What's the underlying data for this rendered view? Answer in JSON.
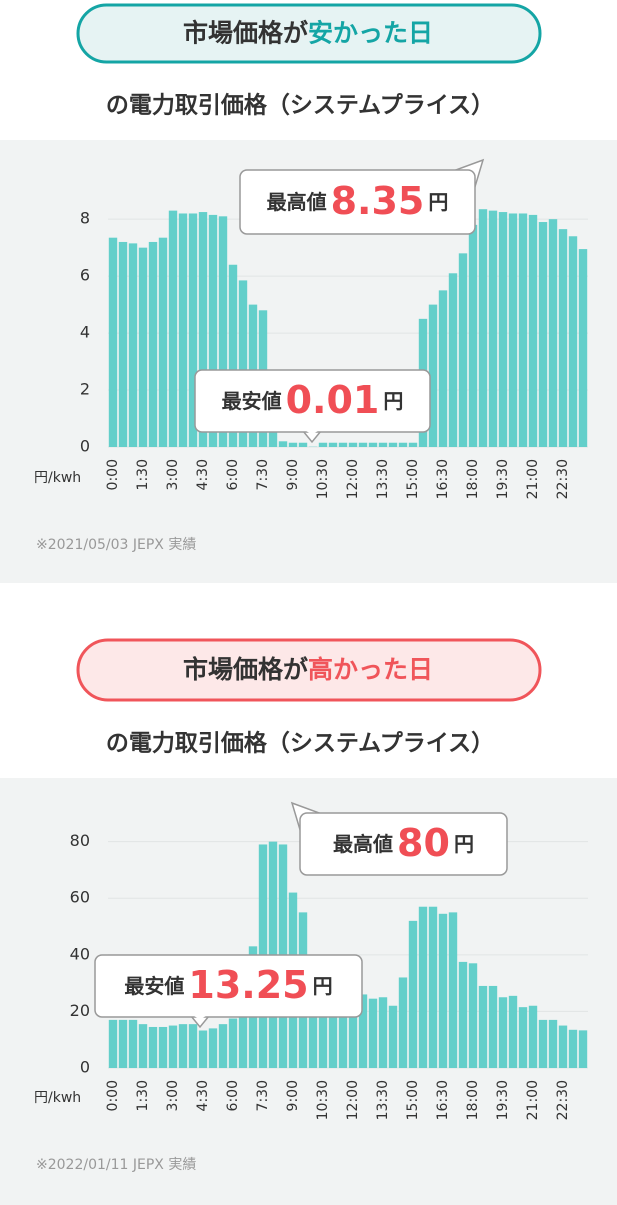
{
  "chart_data": [
    {
      "type": "bar",
      "title_prefix": "市場価格が",
      "title_highlight": "安かった日",
      "highlight_color": "#14a5a5",
      "subtitle": "の電力取引価格（システムプライス）",
      "y_label": "円/kwh",
      "source": "※2021/05/03 JEPX 実績",
      "categories": [
        "0:00",
        null,
        null,
        "1:30",
        null,
        null,
        "3:00",
        null,
        null,
        "4:30",
        null,
        null,
        "6:00",
        null,
        null,
        "7:30",
        null,
        null,
        "9:00",
        null,
        null,
        "10:30",
        null,
        null,
        "12:00",
        null,
        null,
        "13:30",
        null,
        null,
        "15:00",
        null,
        null,
        "16:30",
        null,
        null,
        "18:00",
        null,
        null,
        "19:30",
        null,
        null,
        "21:00",
        null,
        null,
        "22:30",
        null,
        null
      ],
      "values": [
        7.35,
        7.2,
        7.15,
        7.0,
        7.2,
        7.35,
        8.3,
        8.2,
        8.2,
        8.25,
        8.15,
        8.1,
        6.4,
        5.85,
        5.0,
        4.8,
        1.5,
        0.2,
        0.15,
        0.15,
        0.01,
        0.15,
        0.15,
        0.15,
        0.15,
        0.15,
        0.15,
        0.15,
        0.15,
        0.15,
        0.15,
        4.5,
        5.0,
        5.5,
        6.1,
        6.8,
        7.8,
        8.35,
        8.3,
        8.25,
        8.2,
        8.2,
        8.15,
        7.9,
        8.0,
        7.65,
        7.4,
        6.95
      ],
      "color": "#63cfca",
      "ylim": [
        0,
        9.2
      ],
      "yticks": [
        0,
        2,
        4,
        6,
        8
      ],
      "grid": true,
      "annotations": [
        {
          "label": "最高値",
          "value": 8.35,
          "unit": "円"
        },
        {
          "label": "最安値",
          "value": 0.01,
          "unit": "円"
        }
      ]
    },
    {
      "type": "bar",
      "title_prefix": "市場価格が",
      "title_highlight": "高かった日",
      "highlight_color": "#f0555a",
      "subtitle": "の電力取引価格（システムプライス）",
      "y_label": "円/kwh",
      "source": "※2022/01/11 JEPX 実績",
      "categories": [
        "0:00",
        null,
        null,
        "1:30",
        null,
        null,
        "3:00",
        null,
        null,
        "4:30",
        null,
        null,
        "6:00",
        null,
        null,
        "7:30",
        null,
        null,
        "9:00",
        null,
        null,
        "10:30",
        null,
        null,
        "12:00",
        null,
        null,
        "13:30",
        null,
        null,
        "15:00",
        null,
        null,
        "16:30",
        null,
        null,
        "18:00",
        null,
        null,
        "19:30",
        null,
        null,
        "21:00",
        null,
        null,
        "22:30",
        null,
        null
      ],
      "values": [
        17,
        17,
        17,
        15.5,
        14.5,
        14.5,
        15,
        15.5,
        15.5,
        13.25,
        14,
        15.5,
        17.5,
        19.5,
        43,
        79,
        80,
        79,
        62,
        55,
        23,
        22,
        21,
        22,
        21,
        26,
        24.5,
        25,
        22,
        32,
        52,
        57,
        57,
        54.5,
        55,
        37.5,
        37,
        29,
        29,
        25,
        25.5,
        21.5,
        22,
        17,
        17,
        15,
        13.5,
        13.3
      ],
      "color": "#63cfca",
      "ylim": [
        0,
        88
      ],
      "yticks": [
        0,
        20,
        40,
        60,
        80
      ],
      "grid": true,
      "annotations": [
        {
          "label": "最高値",
          "value": 80,
          "unit": "円"
        },
        {
          "label": "最安値",
          "value": 13.25,
          "unit": "円"
        }
      ]
    }
  ]
}
